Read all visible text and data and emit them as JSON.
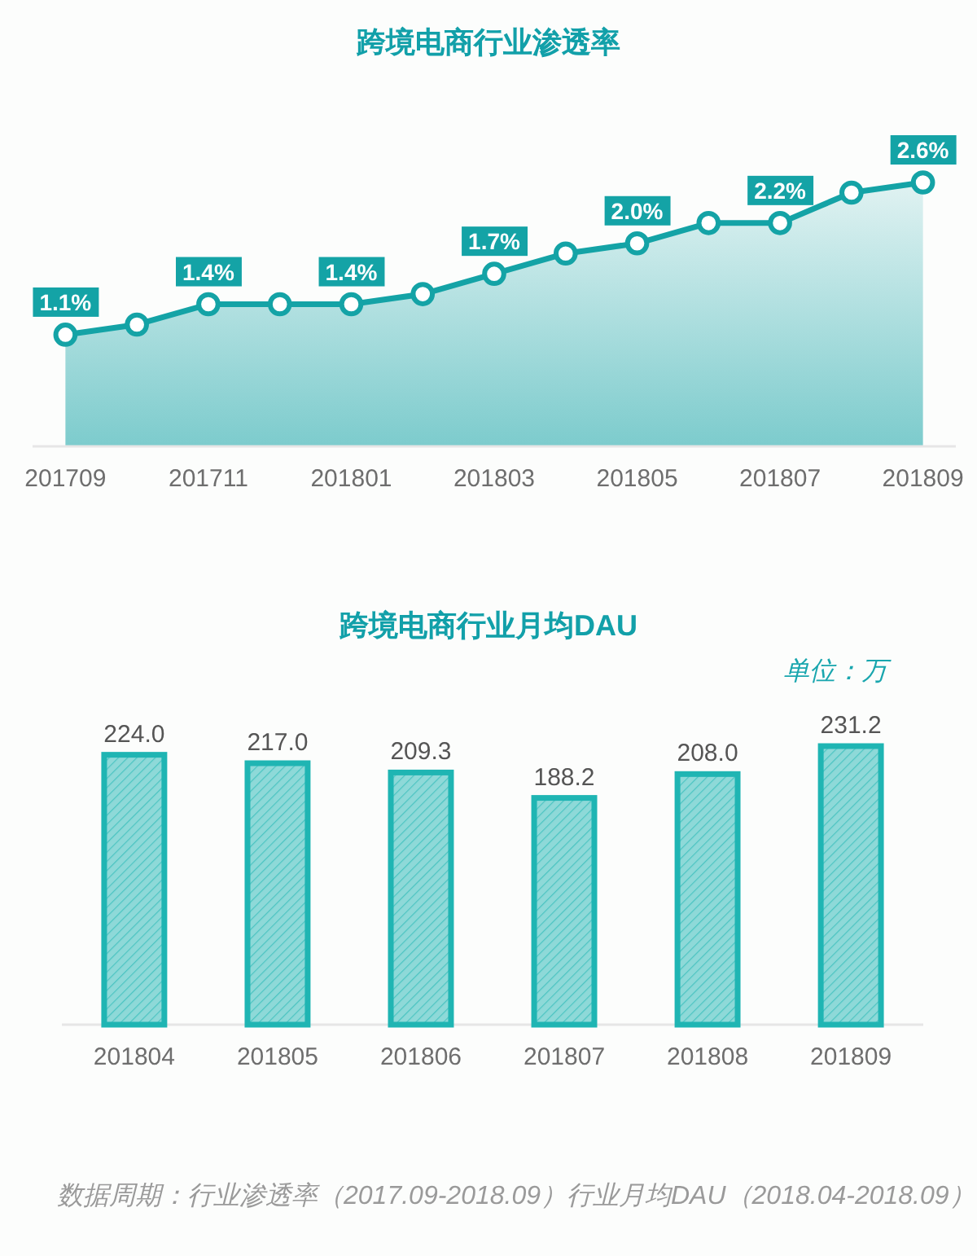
{
  "chart_data": [
    {
      "type": "area",
      "title": "跨境电商行业渗透率",
      "categories": [
        "201709",
        null,
        "201711",
        null,
        "201801",
        null,
        "201803",
        null,
        "201805",
        null,
        "201807",
        null,
        "201809"
      ],
      "values": [
        1.1,
        1.2,
        1.4,
        1.4,
        1.4,
        1.5,
        1.7,
        1.9,
        2.0,
        2.2,
        2.2,
        2.5,
        2.6
      ],
      "value_labels": [
        "1.1%",
        null,
        "1.4%",
        null,
        "1.4%",
        null,
        "1.7%",
        null,
        "2.0%",
        null,
        "2.2%",
        null,
        "2.6%"
      ],
      "color": "#14a3a6",
      "marker": "circle"
    },
    {
      "type": "bar",
      "title": "跨境电商行业月均DAU",
      "categories": [
        "201804",
        "201805",
        "201806",
        "201807",
        "201808",
        "201809"
      ],
      "values": [
        224.0,
        217.0,
        209.3,
        188.2,
        208.0,
        231.2
      ],
      "value_labels": [
        "224.0",
        "217.0",
        "209.3",
        "188.2",
        "208.0",
        "231.2"
      ],
      "color": "#1fb5b3",
      "annotations": [
        "单位：万",
        "数据周期：行业渗透率（2017.09-2018.09）行业月均DAU（2018.04-2018.09）"
      ]
    }
  ]
}
